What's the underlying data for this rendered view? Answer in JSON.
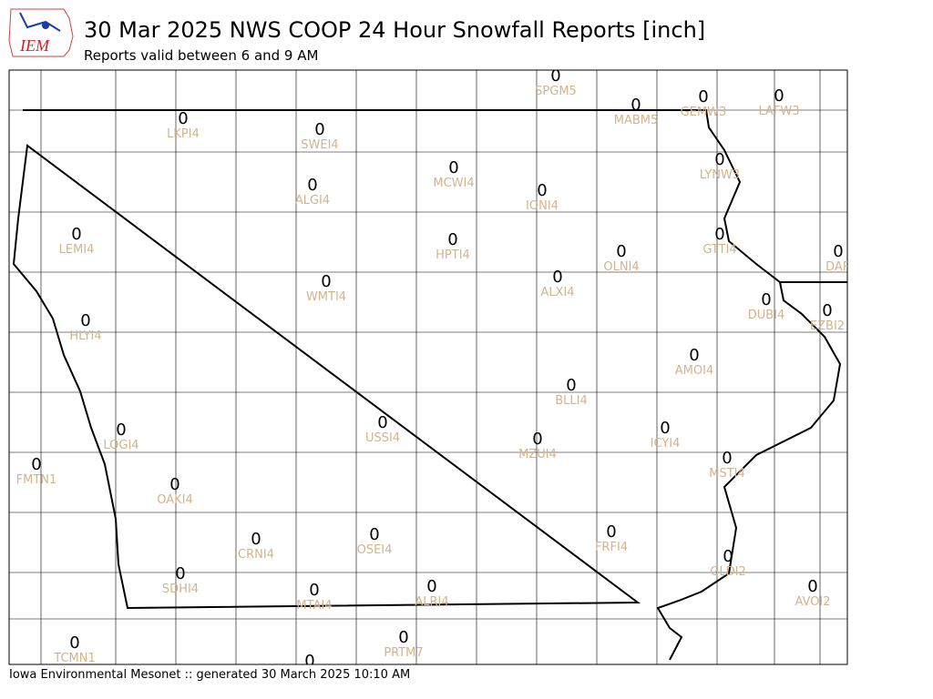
{
  "header": {
    "logo": "IEM",
    "title": "30 Mar 2025 NWS COOP 24 Hour Snowfall Reports [inch]",
    "subtitle": "Reports valid between 6 and 9 AM"
  },
  "footer": "Iowa Environmental Mesonet :: generated 30 March 2025 10:10 AM",
  "stations": [
    {
      "name": "SPGM5",
      "value": 0
    },
    {
      "name": "MABM5",
      "value": 0
    },
    {
      "name": "GEMW3",
      "value": 0
    },
    {
      "name": "LAFW3",
      "value": 0
    },
    {
      "name": "LKPI4",
      "value": 0
    },
    {
      "name": "SWEI4",
      "value": 0
    },
    {
      "name": "LYNW3",
      "value": 0
    },
    {
      "name": "MCWI4",
      "value": 0
    },
    {
      "name": "ALGI4",
      "value": 0
    },
    {
      "name": "IONI4",
      "value": 0
    },
    {
      "name": "LEMI4",
      "value": 0
    },
    {
      "name": "HPTI4",
      "value": 0
    },
    {
      "name": "GTTI4",
      "value": 0
    },
    {
      "name": "DAR",
      "value": 0
    },
    {
      "name": "OLNI4",
      "value": 0
    },
    {
      "name": "ALXI4",
      "value": 0
    },
    {
      "name": "WMTI4",
      "value": 0
    },
    {
      "name": "DUBI4",
      "value": 0
    },
    {
      "name": "EZBI2",
      "value": 0
    },
    {
      "name": "HLYI4",
      "value": 0
    },
    {
      "name": "AMOI4",
      "value": 0
    },
    {
      "name": "BLLI4",
      "value": 0
    },
    {
      "name": "USSI4",
      "value": 0
    },
    {
      "name": "LOGI4",
      "value": 0
    },
    {
      "name": "ICYI4",
      "value": 0
    },
    {
      "name": "MZUI4",
      "value": 0
    },
    {
      "name": "FMTN1",
      "value": 0
    },
    {
      "name": "MSTI4",
      "value": 0
    },
    {
      "name": "OAKI4",
      "value": 0
    },
    {
      "name": "CRNI4",
      "value": 0
    },
    {
      "name": "OSEI4",
      "value": 0
    },
    {
      "name": "FRFI4",
      "value": 0
    },
    {
      "name": "GLDI2",
      "value": 0
    },
    {
      "name": "SDHI4",
      "value": 0
    },
    {
      "name": "AVOI2",
      "value": 0
    },
    {
      "name": "MTAI4",
      "value": 0
    },
    {
      "name": "ALRI4",
      "value": 0
    },
    {
      "name": "PRTM7",
      "value": 0
    },
    {
      "name": "TCMN1",
      "value": 0
    },
    {
      "name": null,
      "value": 0
    }
  ]
}
